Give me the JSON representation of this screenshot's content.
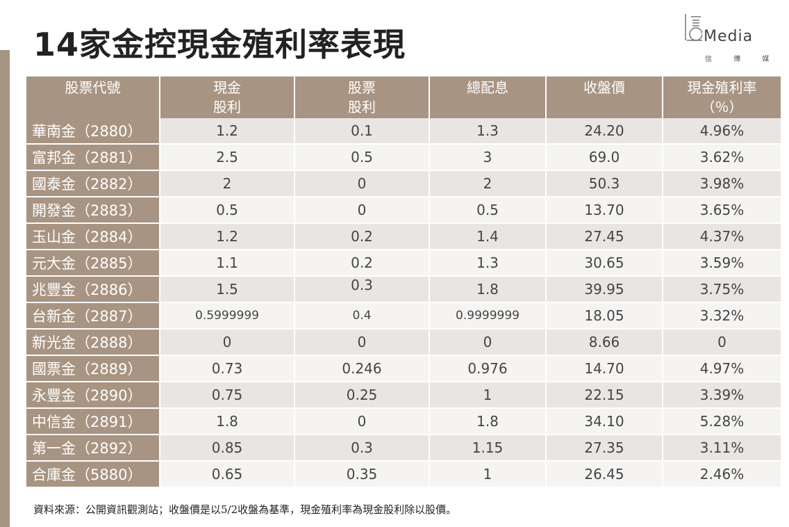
{
  "title": "14家金控現金殖利率表現",
  "logo": {
    "wordmark": "Media",
    "chinese": "信 傳 媒"
  },
  "table": {
    "headers": [
      [
        "股票代號"
      ],
      [
        "現金",
        "股利"
      ],
      [
        "股票",
        "股利"
      ],
      [
        "總配息"
      ],
      [
        "收盤價"
      ],
      [
        "現金殖利率",
        "（％）"
      ]
    ],
    "rows": [
      [
        "華南金（2880）",
        "1.2",
        "0.1",
        "1.3",
        "24.20",
        "4.96%"
      ],
      [
        "富邦金（2881）",
        "2.5",
        "0.5",
        "3",
        "69.0",
        "3.62%"
      ],
      [
        "國泰金（2882）",
        "2",
        "0",
        "2",
        "50.3",
        "3.98%"
      ],
      [
        "開發金（2883）",
        "0.5",
        "0",
        "0.5",
        "13.70",
        "3.65%"
      ],
      [
        "玉山金（2884）",
        "1.2",
        "0.2",
        "1.4",
        "27.45",
        "4.37%"
      ],
      [
        "元大金（2885）",
        "1.1",
        "0.2",
        "1.3",
        "30.65",
        "3.59%"
      ],
      [
        "兆豐金（2886）",
        "1.5",
        "0.3",
        "1.8",
        "39.95",
        "3.75%"
      ],
      [
        "台新金（2887）",
        "0.5999999",
        "0.4",
        "0.9999999",
        "18.05",
        "3.32%"
      ],
      [
        "新光金（2888）",
        "0",
        "0",
        "0",
        "8.66",
        "0"
      ],
      [
        "國票金（2889）",
        "0.73",
        "0.246",
        "0.976",
        "14.70",
        "4.97%"
      ],
      [
        "永豐金（2890）",
        "0.75",
        "0.25",
        "1",
        "22.15",
        "3.39%"
      ],
      [
        "中信金（2891）",
        "1.8",
        "0",
        "1.8",
        "34.10",
        "5.28%"
      ],
      [
        "第一金（2892）",
        "0.85",
        "0.3",
        "1.15",
        "27.35",
        "3.11%"
      ],
      [
        "合庫金（5880）",
        "0.65",
        "0.35",
        "1",
        "26.45",
        "2.46%"
      ]
    ]
  },
  "footnote": "資料來源：公開資訊觀測站；收盤價是以5/2收盤為基準，現金殖利率為現金股利除以股價。",
  "colors": {
    "header_bg": "#a89482",
    "row_odd": "#e9e5e2",
    "row_even": "#f5f4f2"
  }
}
